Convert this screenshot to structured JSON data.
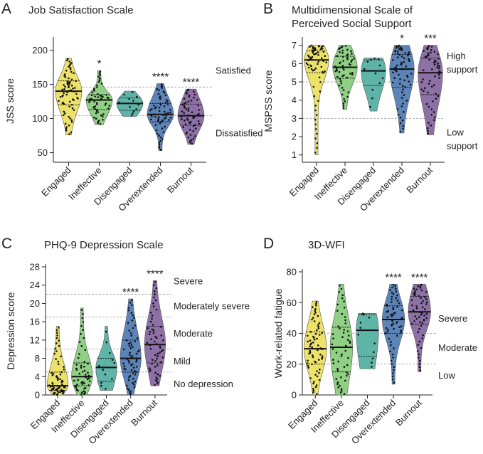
{
  "colors": {
    "Engaged": "#ece26a",
    "Ineffective": "#8fd084",
    "Disengaged": "#5fb4a8",
    "Overextended": "#5c84b8",
    "Burnout": "#8d70a6"
  },
  "chart_data": [
    {
      "id": "A",
      "type": "violin",
      "panel_letter": "A",
      "title": "Job Satisfaction Scale",
      "title_lines": [
        "Job Satisfaction Scale"
      ],
      "ylabel": "JSS score",
      "ylim": [
        36,
        215
      ],
      "yticks": [
        50,
        100,
        150,
        200
      ],
      "categories": [
        "Engaged",
        "Ineffective",
        "Disengaged",
        "Overextended",
        "Burnout"
      ],
      "reference_lines": [
        104,
        146
      ],
      "zone_labels": [
        {
          "lines": [
            "Satisfied"
          ],
          "y": 171
        },
        {
          "lines": [
            "Dissatisfied"
          ],
          "y": 79
        }
      ],
      "significance": [
        "",
        "*",
        "",
        "****",
        "****"
      ],
      "series": [
        {
          "name": "Engaged",
          "min": 76,
          "q1": 120,
          "median": 140,
          "q3": 155,
          "max": 188,
          "n": 70
        },
        {
          "name": "Ineffective",
          "min": 91,
          "q1": 113,
          "median": 127,
          "q3": 135,
          "max": 170,
          "n": 55
        },
        {
          "name": "Disengaged",
          "min": 103,
          "q1": 112,
          "median": 122,
          "q3": 130,
          "max": 140,
          "n": 12
        },
        {
          "name": "Overextended",
          "min": 53,
          "q1": 95,
          "median": 106,
          "q3": 122,
          "max": 151,
          "n": 65
        },
        {
          "name": "Burnout",
          "min": 62,
          "q1": 90,
          "median": 104,
          "q3": 121,
          "max": 143,
          "n": 60
        }
      ]
    },
    {
      "id": "B",
      "type": "violin",
      "panel_letter": "B",
      "title": "Multidimensional Scale of Perceived Social Support",
      "title_lines": [
        "Multidimensional Scale of",
        "Perceived Social Support"
      ],
      "ylabel": "MSPSS score",
      "ylim": [
        0.6,
        7.3
      ],
      "yticks": [
        1,
        2,
        3,
        4,
        5,
        6,
        7
      ],
      "categories": [
        "Engaged",
        "Ineffective",
        "Disengaged",
        "Overextended",
        "Burnout"
      ],
      "reference_lines": [
        3,
        5
      ],
      "zone_labels": [
        {
          "lines": [
            "High",
            "support"
          ],
          "y": 6.1
        },
        {
          "lines": [
            "Low",
            "support"
          ],
          "y": 1.9
        }
      ],
      "significance": [
        "",
        "",
        "",
        "*",
        "***"
      ],
      "series": [
        {
          "name": "Engaged",
          "min": 1,
          "q1": 5.5,
          "median": 6.2,
          "q3": 6.7,
          "max": 7,
          "n": 70
        },
        {
          "name": "Ineffective",
          "min": 3.5,
          "q1": 5.2,
          "median": 5.8,
          "q3": 6.4,
          "max": 7,
          "n": 55
        },
        {
          "name": "Disengaged",
          "min": 3.4,
          "q1": 4.8,
          "median": 5.6,
          "q3": 6.2,
          "max": 6.3,
          "n": 12
        },
        {
          "name": "Overextended",
          "min": 2.2,
          "q1": 4.7,
          "median": 5.7,
          "q3": 6.5,
          "max": 7,
          "n": 65
        },
        {
          "name": "Burnout",
          "min": 2.1,
          "q1": 4.3,
          "median": 5.5,
          "q3": 6.3,
          "max": 7,
          "n": 60
        }
      ]
    },
    {
      "id": "C",
      "type": "violin",
      "panel_letter": "C",
      "title": "PHQ-9 Depression Scale",
      "title_lines": [
        "PHQ-9 Depression Scale"
      ],
      "ylabel": "Depression score",
      "ylim": [
        0,
        28
      ],
      "yticks": [
        0,
        4,
        8,
        12,
        16,
        20,
        24,
        28
      ],
      "categories": [
        "Engaged",
        "Ineffective",
        "Disengaged",
        "Overextended",
        "Burnout"
      ],
      "reference_lines": [
        5,
        10,
        17,
        22
      ],
      "zone_labels": [
        {
          "lines": [
            "Severe"
          ],
          "y": 25
        },
        {
          "lines": [
            "Moderately severe"
          ],
          "y": 19.5
        },
        {
          "lines": [
            "Moderate"
          ],
          "y": 13.5
        },
        {
          "lines": [
            "Mild"
          ],
          "y": 7.5
        },
        {
          "lines": [
            "No depression"
          ],
          "y": 2.5
        }
      ],
      "significance": [
        "",
        "",
        "",
        "****",
        "****"
      ],
      "series": [
        {
          "name": "Engaged",
          "min": 0,
          "q1": 1,
          "median": 2,
          "q3": 5,
          "max": 15,
          "n": 70
        },
        {
          "name": "Ineffective",
          "min": 0,
          "q1": 2,
          "median": 4,
          "q3": 7,
          "max": 19,
          "n": 55
        },
        {
          "name": "Disengaged",
          "min": 1,
          "q1": 3,
          "median": 6,
          "q3": 8,
          "max": 15,
          "n": 12
        },
        {
          "name": "Overextended",
          "min": 0,
          "q1": 5,
          "median": 8,
          "q3": 12,
          "max": 21,
          "n": 65
        },
        {
          "name": "Burnout",
          "min": 2,
          "q1": 7,
          "median": 11,
          "q3": 15,
          "max": 25,
          "n": 60
        }
      ]
    },
    {
      "id": "D",
      "type": "violin",
      "panel_letter": "D",
      "title": "3D-WFI",
      "title_lines": [
        "3D-WFI"
      ],
      "ylabel": "Work-related fatigue",
      "ylim": [
        0,
        80
      ],
      "yticks": [
        0,
        20,
        40,
        60,
        80
      ],
      "categories": [
        "Engaged",
        "Ineffective",
        "Disengaged",
        "Overextended",
        "Burnout"
      ],
      "reference_lines": [
        20,
        40
      ],
      "zone_labels": [
        {
          "lines": [
            "Severe"
          ],
          "y": 50
        },
        {
          "lines": [
            "Moderate"
          ],
          "y": 31
        },
        {
          "lines": [
            "Low"
          ],
          "y": 13
        }
      ],
      "significance": [
        "",
        "",
        "",
        "****",
        "****"
      ],
      "series": [
        {
          "name": "Engaged",
          "min": 0,
          "q1": 20,
          "median": 30,
          "q3": 41,
          "max": 61,
          "n": 70
        },
        {
          "name": "Ineffective",
          "min": 0,
          "q1": 15,
          "median": 31,
          "q3": 44,
          "max": 72,
          "n": 55
        },
        {
          "name": "Disengaged",
          "min": 17,
          "q1": 25,
          "median": 42,
          "q3": 52,
          "max": 53,
          "n": 12
        },
        {
          "name": "Overextended",
          "min": 7,
          "q1": 40,
          "median": 49,
          "q3": 58,
          "max": 72,
          "n": 65
        },
        {
          "name": "Burnout",
          "min": 15,
          "q1": 46,
          "median": 54,
          "q3": 64,
          "max": 72,
          "n": 60
        }
      ]
    }
  ]
}
